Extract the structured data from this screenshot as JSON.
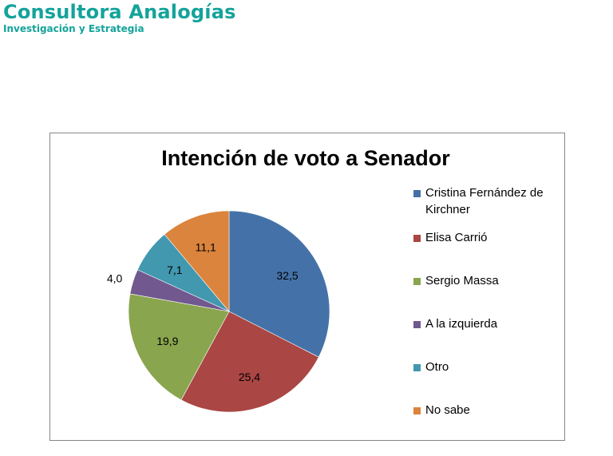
{
  "header": {
    "brand_title": "Consultora Analogías",
    "brand_subtitle": "Investigación y Estrategia"
  },
  "chart_data": {
    "type": "pie",
    "title": "Intención de voto a Senador",
    "slices": [
      {
        "name": "Cristina Fernández de Kirchner",
        "value": 32.5,
        "label": "32,5",
        "color": "#4472a8"
      },
      {
        "name": "Elisa Carrió",
        "value": 25.4,
        "label": "25,4",
        "color": "#aa4643"
      },
      {
        "name": "Sergio Massa",
        "value": 19.9,
        "label": "19,9",
        "color": "#89a54e"
      },
      {
        "name": "A la izquierda",
        "value": 4.0,
        "label": "4,0",
        "color": "#71588f"
      },
      {
        "name": "Otro",
        "value": 7.1,
        "label": "7,1",
        "color": "#4198af"
      },
      {
        "name": "No sabe",
        "value": 11.1,
        "label": "11,1",
        "color": "#db843d"
      }
    ],
    "legend_position": "right"
  }
}
